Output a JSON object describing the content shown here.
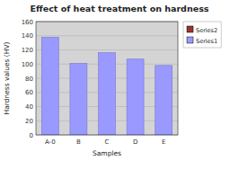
{
  "chart_data": {
    "type": "bar",
    "title": "Effect of heat treatment on hardness",
    "xlabel": "Samples",
    "ylabel": "Hardness values (HV)",
    "categories": [
      "A-0",
      "B",
      "C",
      "D",
      "E"
    ],
    "series": [
      {
        "name": "Series2",
        "color": "#993333",
        "values": [
          null,
          null,
          null,
          null,
          null
        ]
      },
      {
        "name": "Series1",
        "color": "#9999ff",
        "values": [
          138,
          101,
          116,
          107,
          98
        ]
      }
    ],
    "ylim": [
      0,
      160
    ],
    "yticks": [
      0,
      20,
      40,
      60,
      80,
      100,
      120,
      140,
      160
    ],
    "grid": true,
    "legend": "right"
  }
}
